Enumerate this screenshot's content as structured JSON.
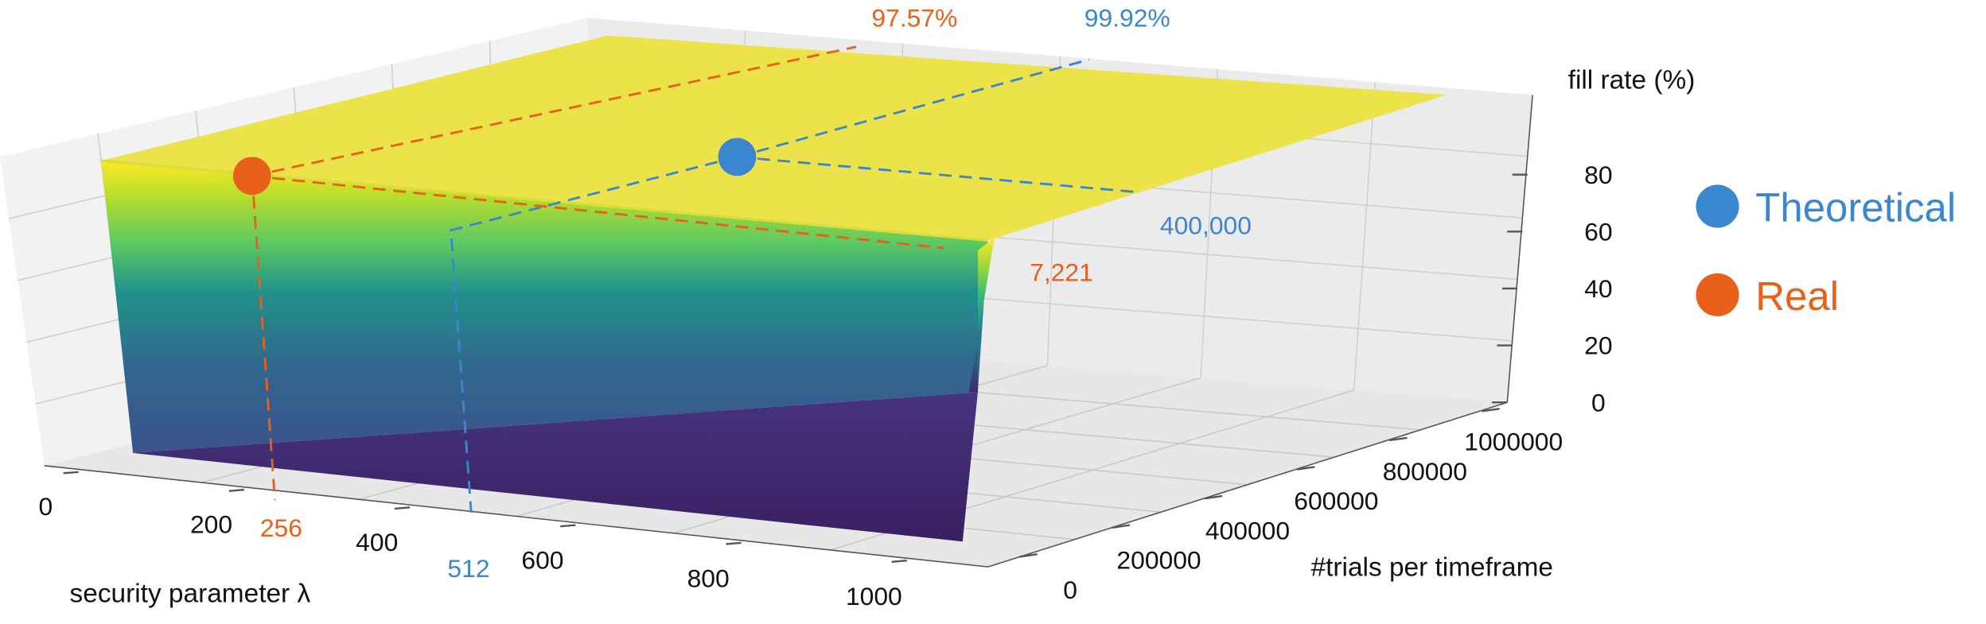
{
  "chart_data": {
    "type": "surface3d",
    "xlabel": "security parameter λ",
    "ylabel": "#trials per timeframe",
    "zlabel": "fill rate (%)",
    "x_ticks": [
      "0",
      "200",
      "400",
      "600",
      "800",
      "1000"
    ],
    "y_ticks": [
      "0",
      "200000",
      "400000",
      "600000",
      "800000",
      "1000000"
    ],
    "z_ticks": [
      "0",
      "20",
      "40",
      "60",
      "80"
    ],
    "xlim": [
      0,
      1000
    ],
    "ylim": [
      0,
      1000000
    ],
    "zlim": [
      0,
      100
    ],
    "colormap": "viridis",
    "legend_position": "right",
    "series": [
      {
        "name": "Theoretical",
        "color": "#3a87cf",
        "x": 512,
        "y": 400000,
        "z": 99.92,
        "x_label": "512",
        "y_label": "400,000",
        "z_label": "99.92%"
      },
      {
        "name": "Real",
        "color": "#e8601a",
        "x": 256,
        "y": 7221,
        "z": 97.57,
        "x_label": "256",
        "y_label": "7,221",
        "z_label": "97.57%"
      }
    ]
  },
  "colors": {
    "grid": "#bdbdbd",
    "text": "#111111",
    "surface_top": "#f0e442",
    "surface_front": "#3d2465"
  }
}
